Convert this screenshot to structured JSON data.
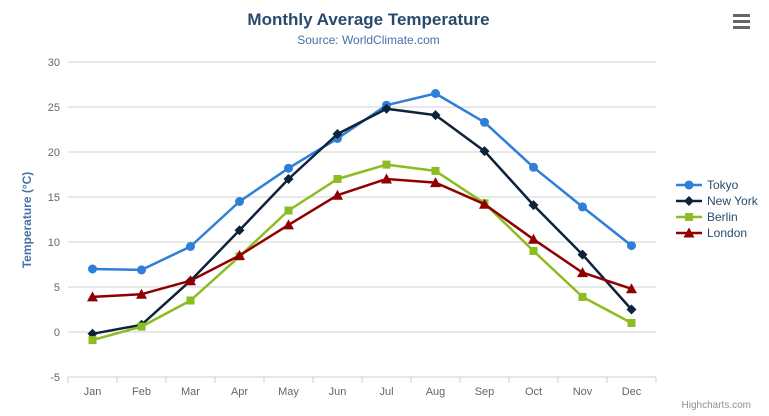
{
  "chart": {
    "title": "Monthly Average Temperature",
    "subtitle": "Source: WorldClimate.com",
    "credits": "Highcharts.com",
    "colors": {
      "title": "#274b6d",
      "subtitle": "#4572a7",
      "axis_label": "#666666",
      "axis_title": "#4572a7",
      "grid": "#d0d0d0",
      "axis_line": "#c0d0e0",
      "legend_text": "#274b6d",
      "credits_text": "#909090",
      "export_icon": "#666666"
    }
  },
  "chart_data": {
    "type": "line",
    "title": "Monthly Average Temperature",
    "subtitle": "Source: WorldClimate.com",
    "xlabel": "",
    "ylabel": "Temperature (°C)",
    "categories": [
      "Jan",
      "Feb",
      "Mar",
      "Apr",
      "May",
      "Jun",
      "Jul",
      "Aug",
      "Sep",
      "Oct",
      "Nov",
      "Dec"
    ],
    "ylim": [
      -5,
      30
    ],
    "ytick_step": 5,
    "grid": true,
    "legend_position": "right",
    "series": [
      {
        "name": "Tokyo",
        "color": "#2f7ed8",
        "marker": "circle",
        "values": [
          7.0,
          6.9,
          9.5,
          14.5,
          18.2,
          21.5,
          25.2,
          26.5,
          23.3,
          18.3,
          13.9,
          9.6
        ]
      },
      {
        "name": "New York",
        "color": "#0d233a",
        "marker": "diamond",
        "values": [
          -0.2,
          0.8,
          5.7,
          11.3,
          17.0,
          22.0,
          24.8,
          24.1,
          20.1,
          14.1,
          8.6,
          2.5
        ]
      },
      {
        "name": "Berlin",
        "color": "#8bbc21",
        "marker": "square",
        "values": [
          -0.9,
          0.6,
          3.5,
          8.4,
          13.5,
          17.0,
          18.6,
          17.9,
          14.3,
          9.0,
          3.9,
          1.0
        ]
      },
      {
        "name": "London",
        "color": "#910000",
        "marker": "triangle",
        "values": [
          3.9,
          4.2,
          5.7,
          8.5,
          11.9,
          15.2,
          17.0,
          16.6,
          14.2,
          10.3,
          6.6,
          4.8
        ]
      }
    ]
  }
}
